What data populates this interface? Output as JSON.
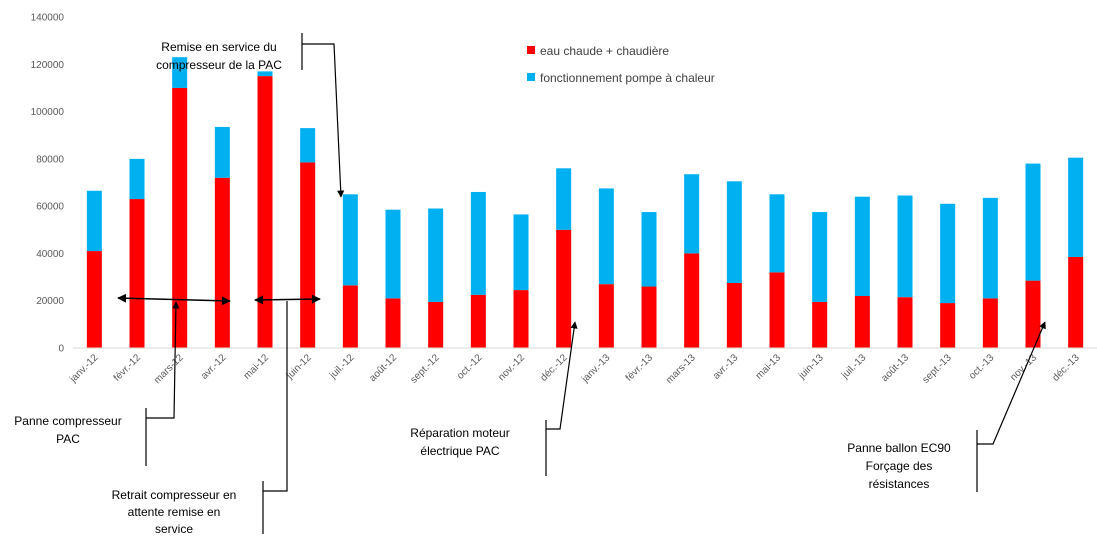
{
  "chart_data": {
    "type": "bar",
    "stacked": true,
    "categories": [
      "janv.-12",
      "févr.-12",
      "mars-12",
      "avr.-12",
      "mai-12",
      "juin-12",
      "juil.-12",
      "août-12",
      "sept.-12",
      "oct.-12",
      "nov.-12",
      "déc.-12",
      "janv.-13",
      "févr.-13",
      "mars-13",
      "avr.-13",
      "mai-13",
      "juin-13",
      "juil.-13",
      "août-13",
      "sept.-13",
      "oct.-13",
      "nov.-13",
      "déc.-13"
    ],
    "series": [
      {
        "name": "eau chaude + chaudière",
        "color": "#ff0000",
        "values": [
          41000,
          63000,
          110000,
          72000,
          115000,
          78500,
          26500,
          21000,
          19500,
          22500,
          24500,
          50000,
          27000,
          26000,
          40000,
          27500,
          32000,
          19500,
          22000,
          21500,
          19000,
          21000,
          28500,
          38500
        ]
      },
      {
        "name": "fonctionnement pompe à chaleur",
        "color": "#00b0f0",
        "values": [
          25500,
          17000,
          13000,
          21500,
          2000,
          14500,
          38500,
          37500,
          39500,
          43500,
          32000,
          26000,
          40500,
          31500,
          33500,
          43000,
          33000,
          38000,
          42000,
          43000,
          42000,
          42500,
          49500,
          42000
        ]
      }
    ],
    "ylim": [
      0,
      140000
    ],
    "yticks": [
      "0",
      "20000",
      "40000",
      "60000",
      "80000",
      "100000",
      "120000",
      "140000"
    ],
    "grid": false,
    "legend": "top-right",
    "annotations": [
      {
        "id": "remise-en-service",
        "lines": [
          "Remise en service du",
          "compresseur de la PAC"
        ]
      },
      {
        "id": "panne-compresseur",
        "lines": [
          "Panne compresseur",
          "PAC"
        ]
      },
      {
        "id": "retrait-compresseur",
        "lines": [
          "Retrait compresseur en",
          "attente remise en",
          "service"
        ]
      },
      {
        "id": "reparation-moteur",
        "lines": [
          "Réparation moteur",
          "électrique PAC"
        ]
      },
      {
        "id": "panne-ballon",
        "lines": [
          "Panne ballon EC90",
          "Forçage des",
          "résistances"
        ]
      }
    ]
  }
}
